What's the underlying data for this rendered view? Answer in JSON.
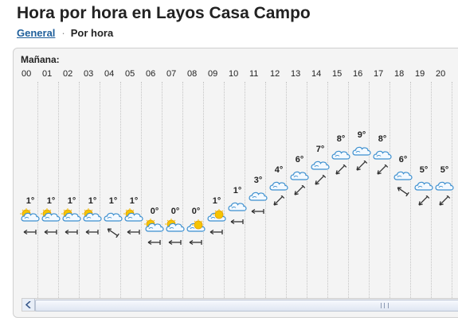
{
  "page": {
    "title": "Hora por hora en Layos Casa Campo"
  },
  "nav": {
    "general": "General",
    "separator": "·",
    "current": "Por hora"
  },
  "forecast": {
    "period_label": "Mañana:",
    "hours": [
      {
        "label": "00",
        "temp": "1°",
        "icon": "cloud-sun-icon",
        "wind": "west-wind-icon",
        "level": 0
      },
      {
        "label": "01",
        "temp": "1°",
        "icon": "cloud-sun-icon",
        "wind": "west-wind-icon",
        "level": 0
      },
      {
        "label": "02",
        "temp": "1°",
        "icon": "cloud-sun-icon",
        "wind": "west-wind-icon",
        "level": 0
      },
      {
        "label": "03",
        "temp": "1°",
        "icon": "cloud-sun-icon",
        "wind": "west-wind-icon",
        "level": 0
      },
      {
        "label": "04",
        "temp": "1°",
        "icon": "cloud-icon",
        "wind": "northwest-wind-icon",
        "level": 0
      },
      {
        "label": "05",
        "temp": "1°",
        "icon": "cloud-sun-icon",
        "wind": "west-wind-icon",
        "level": 0
      },
      {
        "label": "06",
        "temp": "0°",
        "icon": "cloud-sun-icon",
        "wind": "west-wind-icon",
        "level": -1
      },
      {
        "label": "07",
        "temp": "0°",
        "icon": "cloud-sun-icon",
        "wind": "west-wind-icon",
        "level": -1
      },
      {
        "label": "08",
        "temp": "0°",
        "icon": "sun-cloud-icon",
        "wind": "west-wind-icon",
        "level": -1
      },
      {
        "label": "09",
        "temp": "1°",
        "icon": "sun-cloud-icon",
        "wind": "west-wind-icon",
        "level": 0
      },
      {
        "label": "10",
        "temp": "1°",
        "icon": "cloud-icon",
        "wind": "west-wind-icon",
        "level": 1
      },
      {
        "label": "11",
        "temp": "3°",
        "icon": "cloud-icon",
        "wind": "west-wind-icon",
        "level": 2
      },
      {
        "label": "12",
        "temp": "4°",
        "icon": "cloud-icon",
        "wind": "southwest-wind-icon",
        "level": 3
      },
      {
        "label": "13",
        "temp": "6°",
        "icon": "cloud-icon",
        "wind": "southwest-wind-icon",
        "level": 4
      },
      {
        "label": "14",
        "temp": "7°",
        "icon": "cloud-icon",
        "wind": "southwest-wind-icon",
        "level": 5
      },
      {
        "label": "15",
        "temp": "8°",
        "icon": "cloud-icon",
        "wind": "southwest-wind-icon",
        "level": 6
      },
      {
        "label": "16",
        "temp": "9°",
        "icon": "cloud-icon",
        "wind": "southwest-wind-icon",
        "level": 6.4
      },
      {
        "label": "17",
        "temp": "8°",
        "icon": "cloud-icon",
        "wind": "southwest-wind-icon",
        "level": 6
      },
      {
        "label": "18",
        "temp": "6°",
        "icon": "cloud-icon",
        "wind": "northwest-wind-icon",
        "level": 4
      },
      {
        "label": "19",
        "temp": "5°",
        "icon": "cloud-icon",
        "wind": "southwest-wind-icon",
        "level": 3
      },
      {
        "label": "20",
        "temp": "5°",
        "icon": "cloud-icon",
        "wind": "southwest-wind-icon",
        "level": 3
      }
    ]
  },
  "colors": {
    "link": "#1f5f9b",
    "cloud_fill": "#f3f9ff",
    "cloud_stroke": "#3c8fcf",
    "sun": "#f5c400"
  }
}
